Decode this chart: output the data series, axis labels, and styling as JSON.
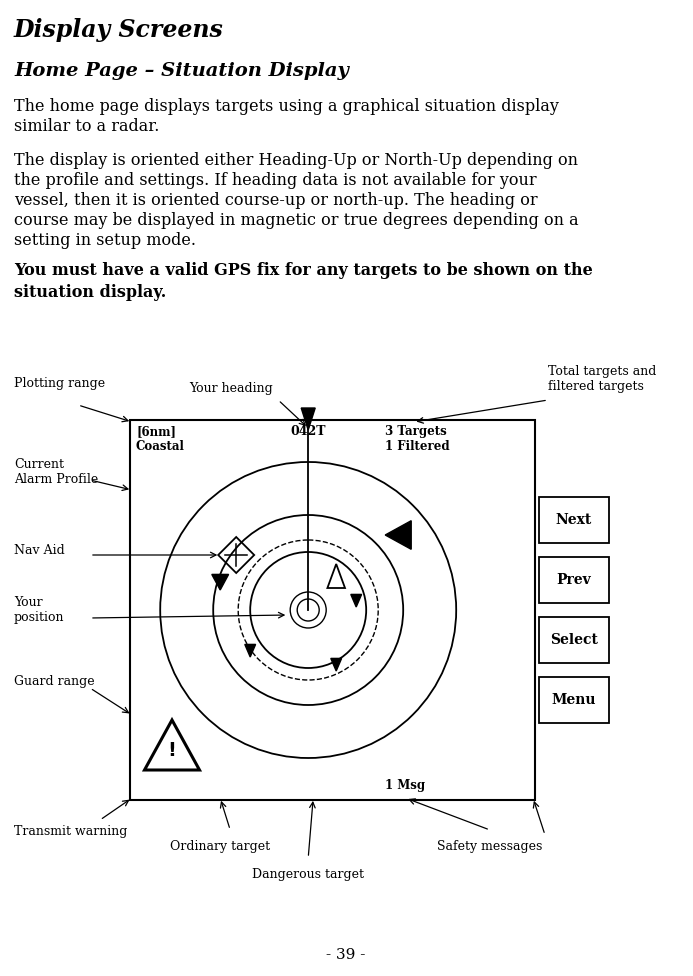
{
  "title": "Display Screens",
  "subtitle": "Home Page – Situation Display",
  "para1": "The home page displays targets using a graphical situation display similar to a radar.",
  "para2": "The display is oriented either Heading-Up or North-Up depending on the profile and settings. If heading data is not available for your vessel, then it is oriented course-up or north-up. The heading or course may be displayed in magnetic or true degrees depending on a setting in setup mode.",
  "para3": "You must have a valid GPS fix for any targets to be shown on the situation display.",
  "page_number": "- 39 -",
  "heading_label": "042T",
  "range_label": "[6nm]\nCoastal",
  "targets_label": "3 Targets\n1 Filtered",
  "msg_label": "1 Msg",
  "buttons": [
    "Next",
    "Prev",
    "Select",
    "Menu"
  ]
}
